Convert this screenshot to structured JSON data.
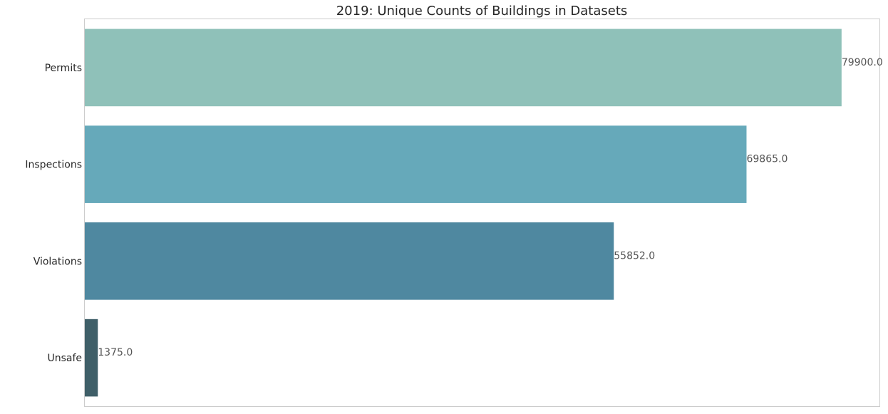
{
  "chart_data": {
    "type": "bar",
    "orientation": "horizontal",
    "title": "2019: Unique Counts of Buildings in Datasets",
    "xlabel": "",
    "ylabel": "",
    "categories": [
      "Permits",
      "Inspections",
      "Violations",
      "Unsafe"
    ],
    "values": [
      79900.0,
      69865.0,
      55852.0,
      1375.0
    ],
    "value_labels": [
      "79900.0",
      "69865.0",
      "55852.0",
      "1375.0"
    ],
    "colors": [
      "#8fc1b9",
      "#66a9ba",
      "#4f88a0",
      "#3f5f68"
    ],
    "xlim": [
      0,
      83900
    ],
    "grid": false,
    "legend": "none"
  }
}
